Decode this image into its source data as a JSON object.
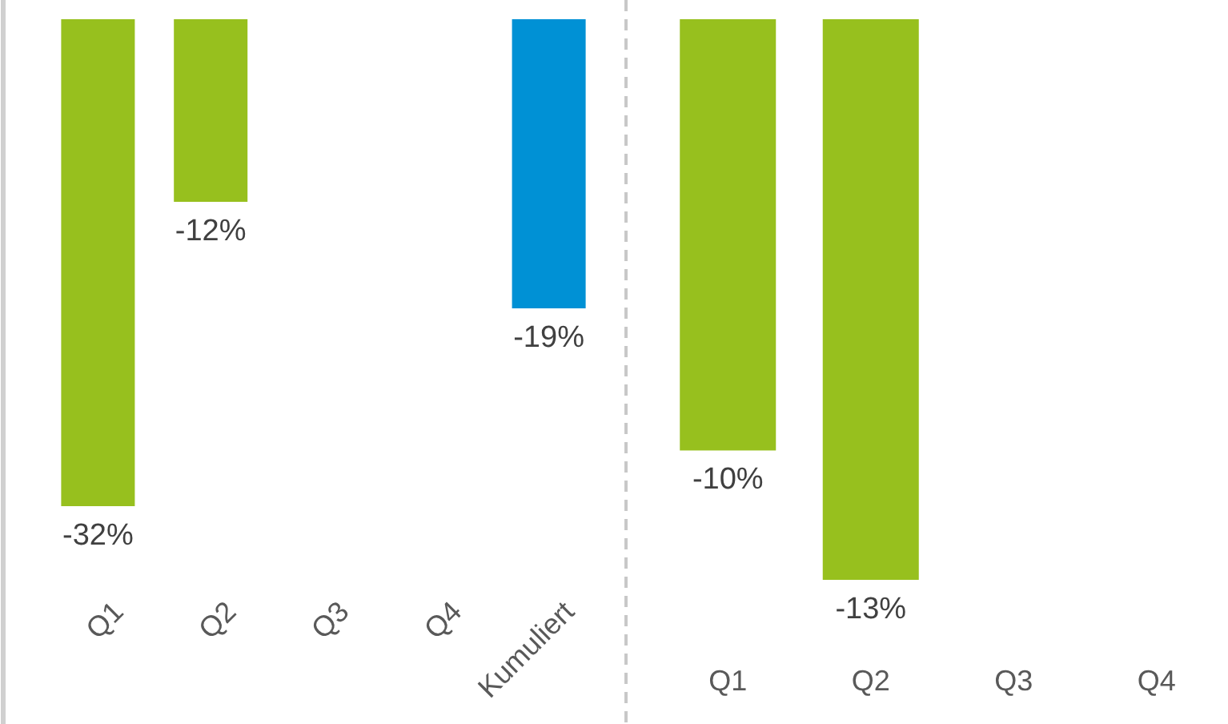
{
  "chart_data": [
    {
      "type": "bar",
      "categories": [
        "Q1",
        "Q2",
        "Q3",
        "Q4",
        "Kumuliert"
      ],
      "values": [
        -32,
        -12,
        null,
        null,
        -19
      ],
      "value_labels": [
        "-32%",
        "-12%",
        null,
        null,
        "-19%"
      ],
      "colors": [
        "#97c01e",
        "#97c01e",
        null,
        null,
        "#0091d5"
      ],
      "tick_labels": "x"
    },
    {
      "type": "bar",
      "categories": [
        "Q1",
        "Q2",
        "Q3",
        "Q4"
      ],
      "values": [
        -10,
        -13,
        null,
        null
      ],
      "value_labels": [
        "-10%",
        "-13%",
        null,
        null
      ],
      "colors": [
        "#97c01e",
        "#97c01e",
        null,
        null
      ],
      "tick_labels": "x"
    }
  ]
}
